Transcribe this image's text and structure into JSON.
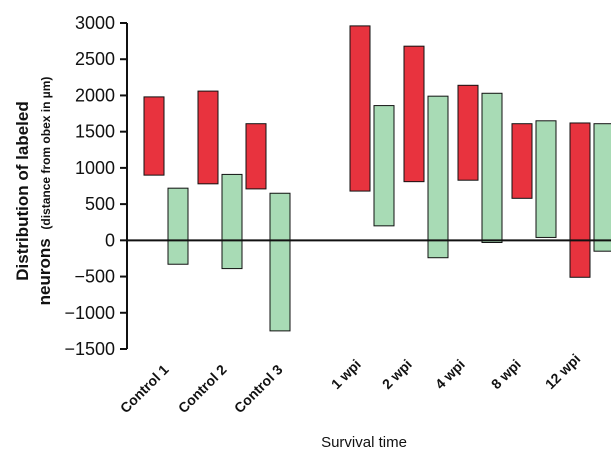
{
  "chart_data": {
    "type": "bar",
    "subtype": "floating-range",
    "categories": [
      "Control 1",
      "Control 2",
      "Control 3",
      "1 wpi",
      "2 wpi",
      "4 wpi",
      "8 wpi",
      "12 wpi"
    ],
    "series": [
      {
        "color": "#e8333e",
        "ranges": [
          [
            900,
            1980
          ],
          [
            780,
            2060
          ],
          [
            710,
            1610
          ],
          [
            680,
            2960
          ],
          [
            810,
            2680
          ],
          [
            830,
            2140
          ],
          [
            580,
            1610
          ],
          [
            -510,
            1620
          ]
        ]
      },
      {
        "color": "#a8dbb5",
        "ranges": [
          [
            -330,
            720
          ],
          [
            -390,
            910
          ],
          [
            -1250,
            650
          ],
          [
            200,
            1860
          ],
          [
            -240,
            1990
          ],
          [
            -30,
            2030
          ],
          [
            40,
            1650
          ],
          [
            -150,
            1610
          ]
        ]
      }
    ],
    "ylabel_main_line1": "Distribution of labeled",
    "ylabel_main_line2": "neurons",
    "ylabel_sub": "(distance from obex in µm)",
    "xlabel": "Survival time",
    "ylim": [
      -1500,
      3000
    ],
    "yticks": [
      3000,
      2500,
      2000,
      1500,
      1000,
      500,
      0,
      -500,
      -1000,
      -1500
    ],
    "ytick_labels": [
      "3000",
      "2500",
      "2000",
      "1500",
      "1000",
      "500",
      "0",
      "−500",
      "−1000",
      "−1500"
    ],
    "zero_line": true,
    "grid": false,
    "legend": "none"
  }
}
